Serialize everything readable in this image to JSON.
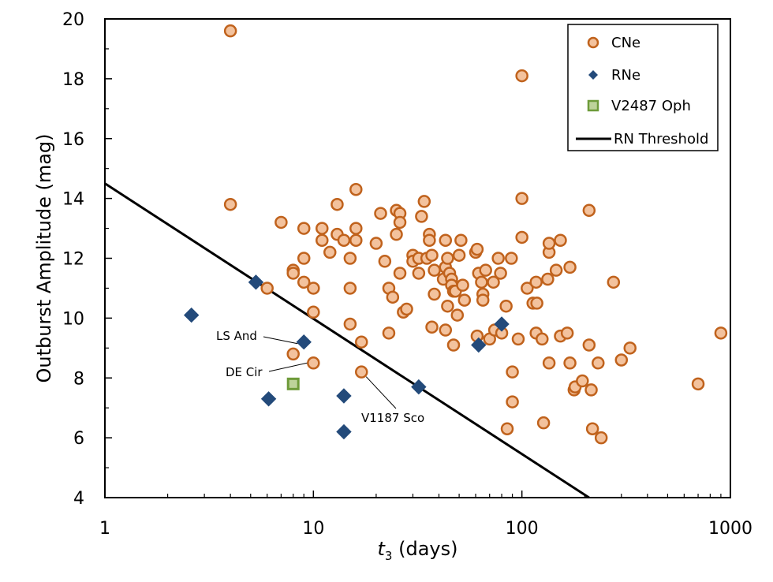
{
  "chart_data": {
    "type": "scatter",
    "title": "",
    "xlabel_italic": "t",
    "xlabel_sub": "3",
    "xlabel_rest": " (days)",
    "ylabel": "Outburst Amplitude (mag)",
    "xscale": "log",
    "xlim": [
      1,
      1000
    ],
    "ylim": [
      4,
      20
    ],
    "x_tick_labels": [
      "1",
      "10",
      "100",
      "1000"
    ],
    "y_tick_labels": [
      "4",
      "6",
      "8",
      "10",
      "12",
      "14",
      "16",
      "18",
      "20"
    ],
    "grid": false,
    "legend_position": "top-right",
    "legend": [
      {
        "label": "CNe",
        "marker": "circle"
      },
      {
        "label": "RNe",
        "marker": "diamond"
      },
      {
        "label": "V2487 Oph",
        "marker": "square"
      },
      {
        "label": "RN Threshold",
        "marker": "line"
      }
    ],
    "colors": {
      "cne_fill": "#f3c29d",
      "cne_edge": "#c0621c",
      "rne_fill": "#234a7a",
      "v2487_fill": "#bdd39a",
      "v2487_edge": "#6e9b3a",
      "threshold": "#000000"
    },
    "threshold_line": {
      "x": [
        1,
        210
      ],
      "y": [
        14.5,
        4
      ]
    },
    "series": [
      {
        "name": "CNe",
        "points": [
          [
            4,
            19.6
          ],
          [
            4,
            13.8
          ],
          [
            6,
            11
          ],
          [
            7,
            13.2
          ],
          [
            8,
            11.6
          ],
          [
            8,
            11.5
          ],
          [
            9,
            13
          ],
          [
            9,
            12
          ],
          [
            9,
            11.2
          ],
          [
            10,
            11
          ],
          [
            10,
            10.2
          ],
          [
            10,
            8.5
          ],
          [
            8,
            8.8
          ],
          [
            11,
            13
          ],
          [
            11,
            12.6
          ],
          [
            12,
            12.2
          ],
          [
            13,
            13.8
          ],
          [
            13,
            12.8
          ],
          [
            14,
            12.6
          ],
          [
            15,
            12
          ],
          [
            15,
            11
          ],
          [
            15,
            9.8
          ],
          [
            16,
            14.3
          ],
          [
            16,
            13
          ],
          [
            16,
            12.6
          ],
          [
            17,
            9.2
          ],
          [
            17,
            8.2
          ],
          [
            20,
            12.5
          ],
          [
            21,
            13.5
          ],
          [
            22,
            11.9
          ],
          [
            23,
            11
          ],
          [
            23,
            9.5
          ],
          [
            24,
            10.7
          ],
          [
            25,
            13.6
          ],
          [
            26,
            13.5
          ],
          [
            26,
            13.2
          ],
          [
            25,
            12.8
          ],
          [
            26,
            11.5
          ],
          [
            27,
            10.2
          ],
          [
            28,
            10.3
          ],
          [
            30,
            12.1
          ],
          [
            30,
            11.9
          ],
          [
            32,
            12
          ],
          [
            32,
            11.5
          ],
          [
            33,
            13.4
          ],
          [
            34,
            13.9
          ],
          [
            35,
            12
          ],
          [
            36,
            12.8
          ],
          [
            36,
            12.6
          ],
          [
            37,
            12.1
          ],
          [
            38,
            11.6
          ],
          [
            38,
            10.8
          ],
          [
            37,
            9.7
          ],
          [
            42,
            11.3
          ],
          [
            43,
            11.7
          ],
          [
            43,
            12.6
          ],
          [
            44,
            12
          ],
          [
            44,
            10.4
          ],
          [
            43,
            9.6
          ],
          [
            45,
            11.5
          ],
          [
            46,
            11.3
          ],
          [
            46,
            11.1
          ],
          [
            47,
            10.9
          ],
          [
            47,
            9.1
          ],
          [
            48,
            10.9
          ],
          [
            49,
            10.1
          ],
          [
            50,
            12.1
          ],
          [
            51,
            12.6
          ],
          [
            52,
            11.1
          ],
          [
            53,
            10.6
          ],
          [
            60,
            12.2
          ],
          [
            61,
            12.3
          ],
          [
            61,
            9.4
          ],
          [
            62,
            11.5
          ],
          [
            64,
            11.2
          ],
          [
            65,
            10.8
          ],
          [
            65,
            10.6
          ],
          [
            67,
            11.6
          ],
          [
            70,
            9.3
          ],
          [
            73,
            11.2
          ],
          [
            74,
            9.6
          ],
          [
            77,
            12
          ],
          [
            79,
            11.5
          ],
          [
            80,
            9.5
          ],
          [
            84,
            10.4
          ],
          [
            85,
            6.3
          ],
          [
            89,
            12
          ],
          [
            90,
            8.2
          ],
          [
            90,
            7.2
          ],
          [
            96,
            9.3
          ],
          [
            100,
            14
          ],
          [
            100,
            12.7
          ],
          [
            100,
            18.1
          ],
          [
            106,
            11
          ],
          [
            113,
            10.5
          ],
          [
            117,
            11.2
          ],
          [
            117,
            9.5
          ],
          [
            118,
            10.5
          ],
          [
            125,
            9.3
          ],
          [
            127,
            6.5
          ],
          [
            133,
            11.3
          ],
          [
            135,
            12.2
          ],
          [
            135,
            12.5
          ],
          [
            135,
            8.5
          ],
          [
            146,
            11.6
          ],
          [
            153,
            9.4
          ],
          [
            153,
            12.6
          ],
          [
            165,
            9.5
          ],
          [
            170,
            11.7
          ],
          [
            170,
            8.5
          ],
          [
            178,
            7.6
          ],
          [
            180,
            7.7
          ],
          [
            195,
            7.9
          ],
          [
            210,
            13.6
          ],
          [
            210,
            9.1
          ],
          [
            215,
            7.6
          ],
          [
            218,
            6.3
          ],
          [
            232,
            8.5
          ],
          [
            240,
            6
          ],
          [
            275,
            11.2
          ],
          [
            300,
            8.6
          ],
          [
            330,
            9
          ],
          [
            700,
            7.8
          ],
          [
            900,
            9.5
          ]
        ]
      },
      {
        "name": "RNe",
        "points": [
          [
            2.6,
            10.1
          ],
          [
            5.3,
            11.2
          ],
          [
            6.1,
            7.3
          ],
          [
            9,
            9.2
          ],
          [
            14,
            7.4
          ],
          [
            14,
            6.2
          ],
          [
            32,
            7.7
          ],
          [
            62,
            9.1
          ],
          [
            80,
            9.8
          ]
        ]
      },
      {
        "name": "V2487 Oph",
        "points": [
          [
            8,
            7.8
          ]
        ]
      }
    ],
    "annotations": [
      {
        "text": "LS And",
        "point": [
          9,
          9.2
        ]
      },
      {
        "text": "DE Cir",
        "point": [
          10,
          8.5
        ]
      },
      {
        "text": "V1187 Sco",
        "point": [
          17,
          8.2
        ]
      }
    ]
  }
}
